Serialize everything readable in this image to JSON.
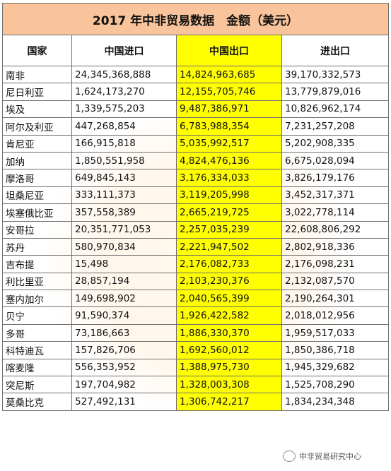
{
  "title": "2017 年中非贸易数据　金额（美元）",
  "headers": {
    "country": "国家",
    "import": "中国进口",
    "export": "中国出口",
    "total": "进出口"
  },
  "rows": [
    {
      "country": "南非",
      "import": "24,345,368,888",
      "export": "14,824,963,685",
      "total": "39,170,332,573"
    },
    {
      "country": "尼日利亚",
      "import": "1,624,173,270",
      "export": "12,155,705,746",
      "total": "13,779,879,016"
    },
    {
      "country": "埃及",
      "import": "1,339,575,203",
      "export": "9,487,386,971",
      "total": "10,826,962,174"
    },
    {
      "country": "阿尔及利亚",
      "import": "447,268,854",
      "export": "6,783,988,354",
      "total": "7,231,257,208"
    },
    {
      "country": "肯尼亚",
      "import": "166,915,818",
      "export": "5,035,992,517",
      "total": "5,202,908,335"
    },
    {
      "country": "加纳",
      "import": "1,850,551,958",
      "export": "4,824,476,136",
      "total": "6,675,028,094"
    },
    {
      "country": "摩洛哥",
      "import": "649,845,143",
      "export": "3,176,334,033",
      "total": "3,826,179,176"
    },
    {
      "country": "坦桑尼亚",
      "import": "333,111,373",
      "export": "3,119,205,998",
      "total": "3,452,317,371"
    },
    {
      "country": "埃塞俄比亚",
      "import": "357,558,389",
      "export": "2,665,219,725",
      "total": "3,022,778,114"
    },
    {
      "country": "安哥拉",
      "import": "20,351,771,053",
      "export": "2,257,035,239",
      "total": "22,608,806,292"
    },
    {
      "country": "苏丹",
      "import": "580,970,834",
      "export": "2,221,947,502",
      "total": "2,802,918,336"
    },
    {
      "country": "吉布提",
      "import": "15,498",
      "export": "2,176,082,733",
      "total": "2,176,098,231"
    },
    {
      "country": "利比里亚",
      "import": "28,857,194",
      "export": "2,103,230,376",
      "total": "2,132,087,570"
    },
    {
      "country": "塞内加尔",
      "import": "149,698,902",
      "export": "2,040,565,399",
      "total": "2,190,264,301"
    },
    {
      "country": "贝宁",
      "import": "91,590,374",
      "export": "1,926,422,582",
      "total": "2,018,012,956"
    },
    {
      "country": "多哥",
      "import": "73,186,663",
      "export": "1,886,330,370",
      "total": "1,959,517,033"
    },
    {
      "country": "科特迪瓦",
      "import": "157,826,706",
      "export": "1,692,560,012",
      "total": "1,850,386,718"
    },
    {
      "country": "喀麦隆",
      "import": "556,353,952",
      "export": "1,388,975,730",
      "total": "1,945,329,682"
    },
    {
      "country": "突尼斯",
      "import": "197,704,982",
      "export": "1,328,003,308",
      "total": "1,525,708,290"
    },
    {
      "country": "莫桑比克",
      "import": "527,492,131",
      "export": "1,306,742,217",
      "total": "1,834,234,348"
    }
  ],
  "logo_text": "中非贸易研究中心"
}
